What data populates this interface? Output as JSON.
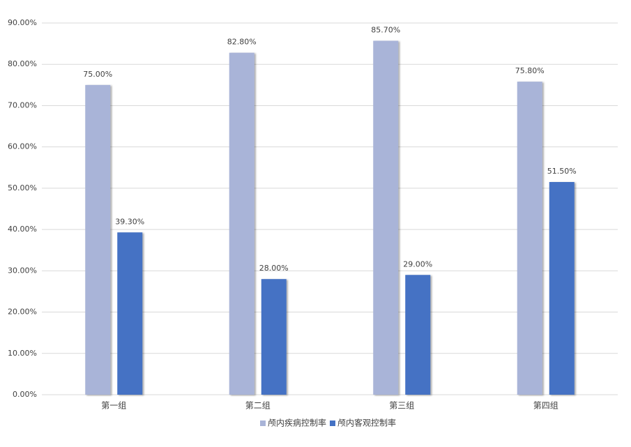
{
  "chart_data": {
    "type": "bar",
    "categories": [
      "第一组",
      "第二组",
      "第三组",
      "第四组"
    ],
    "series": [
      {
        "name": "颅内疾病控制率",
        "color": "#a9b4d8",
        "values": [
          75.0,
          82.8,
          85.7,
          75.8
        ],
        "value_labels": [
          "75.00%",
          "82.80%",
          "85.70%",
          "75.80%"
        ]
      },
      {
        "name": "颅内客观控制率",
        "color": "#4472c4",
        "values": [
          39.3,
          28.0,
          29.0,
          51.5
        ],
        "value_labels": [
          "39.30%",
          "28.00%",
          "29.00%",
          "51.50%"
        ]
      }
    ],
    "ylim": [
      0,
      90
    ],
    "yticks": [
      {
        "value": 0,
        "label": "0.00%"
      },
      {
        "value": 10,
        "label": "10.00%"
      },
      {
        "value": 20,
        "label": "20.00%"
      },
      {
        "value": 30,
        "label": "30.00%"
      },
      {
        "value": 40,
        "label": "40.00%"
      },
      {
        "value": 50,
        "label": "50.00%"
      },
      {
        "value": 60,
        "label": "60.00%"
      },
      {
        "value": 70,
        "label": "70.00%"
      },
      {
        "value": 80,
        "label": "80.00%"
      },
      {
        "value": 90,
        "label": "90.00%"
      }
    ],
    "grid": true,
    "legend": "bottom"
  }
}
